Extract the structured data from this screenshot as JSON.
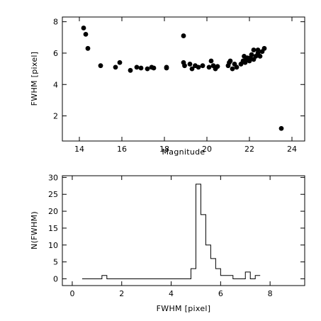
{
  "chart_data": [
    {
      "type": "scatter",
      "xlabel": "Magnitude",
      "ylabel": "FWHM [pixel]",
      "xlim": [
        13.2,
        24.6
      ],
      "ylim": [
        0.4,
        8.3
      ],
      "xticks": [
        14,
        16,
        18,
        20,
        22,
        24
      ],
      "yticks": [
        2,
        4,
        6,
        8
      ],
      "grid": false,
      "series": [
        {
          "marker": "filled-circle",
          "color": "#000000",
          "x": [
            14.2,
            14.3,
            14.4,
            15.0,
            15.7,
            15.9,
            16.4,
            16.7,
            16.9,
            17.2,
            17.4,
            17.5,
            18.1,
            18.1,
            18.9,
            18.9,
            18.95,
            19.2,
            19.3,
            19.45,
            19.6,
            19.8,
            20.1,
            20.2,
            20.3,
            20.4,
            20.5,
            21.0,
            21.05,
            21.1,
            21.2,
            21.3,
            21.4,
            21.6,
            21.7,
            21.75,
            21.8,
            21.85,
            21.9,
            21.95,
            22.0,
            22.05,
            22.1,
            22.2,
            22.3,
            22.4,
            22.5,
            22.6,
            22.7,
            22.2,
            22.4,
            23.5
          ],
          "y": [
            7.6,
            7.2,
            6.3,
            5.2,
            5.1,
            5.4,
            4.9,
            5.1,
            5.05,
            5.0,
            5.1,
            5.05,
            5.05,
            5.1,
            7.1,
            5.4,
            5.2,
            5.3,
            5.0,
            5.2,
            5.1,
            5.2,
            5.1,
            5.5,
            5.2,
            5.0,
            5.15,
            5.2,
            5.4,
            5.5,
            5.0,
            5.3,
            5.1,
            5.3,
            5.5,
            5.8,
            5.4,
            5.6,
            5.7,
            5.6,
            5.5,
            5.7,
            5.9,
            5.6,
            5.8,
            6.0,
            5.8,
            6.1,
            6.3,
            6.2,
            6.2,
            1.2
          ]
        }
      ]
    },
    {
      "type": "line",
      "style": "step histogram",
      "xlabel": "FWHM [pixel]",
      "ylabel": "N(FWHM)",
      "xlim": [
        -0.4,
        9.4
      ],
      "ylim": [
        -2,
        30.5
      ],
      "xticks": [
        0,
        2,
        4,
        6,
        8
      ],
      "yticks": [
        0,
        5,
        10,
        15,
        20,
        25,
        30
      ],
      "grid": false,
      "series": [
        {
          "color": "#000000",
          "bin_edges": [
            0.4,
            1.2,
            1.4,
            1.6,
            4.8,
            5.0,
            5.2,
            5.4,
            5.6,
            5.8,
            6.0,
            6.5,
            7.0,
            7.2,
            7.4,
            7.6
          ],
          "counts": [
            0,
            1,
            0,
            0,
            3,
            28,
            19,
            10,
            6,
            3,
            1,
            0,
            2,
            0,
            1
          ]
        }
      ]
    }
  ]
}
